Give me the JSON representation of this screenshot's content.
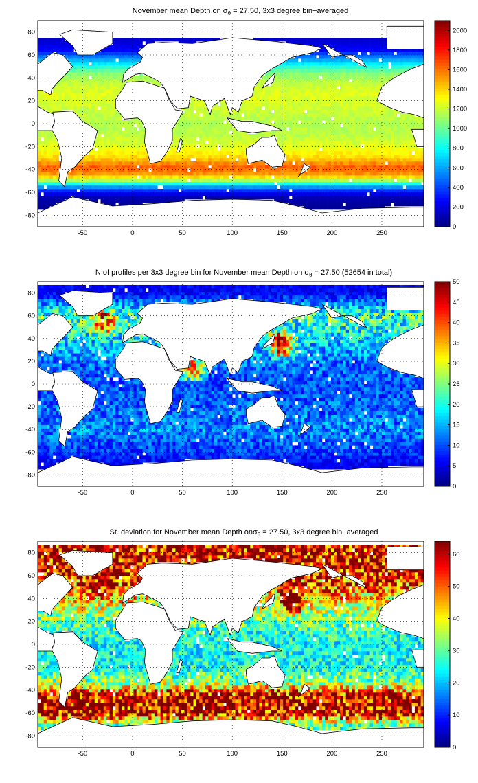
{
  "figure": {
    "x_ticks": [
      -50,
      0,
      50,
      100,
      150,
      200,
      250
    ],
    "y_ticks": [
      80,
      60,
      40,
      20,
      0,
      -20,
      -40,
      -60,
      -80
    ]
  },
  "chart_data": [
    {
      "type": "heatmap",
      "title": "November mean Depth on σθ = 27.50, 3x3 degree bin−averaged",
      "title_parts": {
        "pre": "November mean Depth on ",
        "sym": "σ",
        "sub": "θ",
        "post": " = 27.50, 3x3 degree bin−averaged"
      },
      "xlabel": "",
      "ylabel": "",
      "xlim": [
        -95,
        292
      ],
      "ylim": [
        -90,
        90
      ],
      "x_ticks": [
        -50,
        0,
        50,
        100,
        150,
        200,
        250
      ],
      "y_ticks": [
        80,
        60,
        40,
        20,
        0,
        -20,
        -40,
        -60,
        -80
      ],
      "colorbar": {
        "min": 0,
        "max": 2100,
        "ticks": [
          0,
          200,
          400,
          600,
          800,
          1000,
          1200,
          1400,
          1600,
          1800,
          2000
        ]
      },
      "colormap": "jet",
      "grid": true,
      "bin_size_deg": 3,
      "latitude_profile": [
        {
          "lat": 88,
          "value": null
        },
        {
          "lat": 75,
          "value": 150
        },
        {
          "lat": 65,
          "value": 250
        },
        {
          "lat": 55,
          "value": 650
        },
        {
          "lat": 45,
          "value": 1050
        },
        {
          "lat": 35,
          "value": 1200
        },
        {
          "lat": 25,
          "value": 1250
        },
        {
          "lat": 10,
          "value": 1200
        },
        {
          "lat": 0,
          "value": 1150
        },
        {
          "lat": -10,
          "value": 1180
        },
        {
          "lat": -20,
          "value": 1250
        },
        {
          "lat": -30,
          "value": 1400
        },
        {
          "lat": -38,
          "value": 1650
        },
        {
          "lat": -45,
          "value": 1500
        },
        {
          "lat": -50,
          "value": 1100
        },
        {
          "lat": -55,
          "value": 600
        },
        {
          "lat": -60,
          "value": 250
        },
        {
          "lat": -65,
          "value": 100
        },
        {
          "lat": -72,
          "value": 50
        }
      ],
      "noise": 0.04
    },
    {
      "type": "heatmap",
      "title": "N of profiles per 3x3 degree bin for November mean Depth on σθ = 27.50 (52654 in total)",
      "title_parts": {
        "pre": "N of profiles per 3x3 degree bin for November mean Depth on ",
        "sym": "σ",
        "sub": "θ",
        "post": " = 27.50 (52654 in total)"
      },
      "xlabel": "",
      "ylabel": "",
      "xlim": [
        -95,
        292
      ],
      "ylim": [
        -90,
        90
      ],
      "x_ticks": [
        -50,
        0,
        50,
        100,
        150,
        200,
        250
      ],
      "y_ticks": [
        80,
        60,
        40,
        20,
        0,
        -20,
        -40,
        -60,
        -80
      ],
      "colorbar": {
        "min": 0,
        "max": 50,
        "ticks": [
          0,
          5,
          10,
          15,
          20,
          25,
          30,
          35,
          40,
          45,
          50
        ]
      },
      "colormap": "jet",
      "grid": true,
      "total_profiles": 52654,
      "bin_size_deg": 3,
      "latitude_profile": [
        {
          "lat": 80,
          "value": 6
        },
        {
          "lat": 60,
          "value": 22
        },
        {
          "lat": 40,
          "value": 18
        },
        {
          "lat": 20,
          "value": 12
        },
        {
          "lat": 0,
          "value": 10
        },
        {
          "lat": -20,
          "value": 11
        },
        {
          "lat": -40,
          "value": 13
        },
        {
          "lat": -60,
          "value": 9
        },
        {
          "lat": -72,
          "value": 5
        }
      ],
      "hotspots": [
        {
          "lon": -30,
          "lat": 55,
          "value": 45
        },
        {
          "lon": 150,
          "lat": 35,
          "value": 48
        },
        {
          "lon": 60,
          "lat": 15,
          "value": 40
        }
      ],
      "noise": 0.45
    },
    {
      "type": "heatmap",
      "title": "St. deviation for November mean Depth onσθ = 27.50, 3x3 degree bin−averaged",
      "title_parts": {
        "pre": "St. deviation for November mean Depth on",
        "sym": "σ",
        "sub": "θ",
        "post": " = 27.50, 3x3 degree bin−averaged"
      },
      "xlabel": "",
      "ylabel": "",
      "xlim": [
        -95,
        292
      ],
      "ylim": [
        -90,
        90
      ],
      "x_ticks": [
        -50,
        0,
        50,
        100,
        150,
        200,
        250
      ],
      "y_ticks": [
        80,
        60,
        40,
        20,
        0,
        -20,
        -40,
        -60,
        -80
      ],
      "colorbar": {
        "min": 0,
        "max": 64,
        "ticks": [
          0,
          10,
          20,
          30,
          40,
          50,
          60
        ]
      },
      "colormap": "jet",
      "grid": true,
      "bin_size_deg": 3,
      "latitude_profile": [
        {
          "lat": 65,
          "value": 58
        },
        {
          "lat": 50,
          "value": 50
        },
        {
          "lat": 40,
          "value": 42
        },
        {
          "lat": 20,
          "value": 30
        },
        {
          "lat": 0,
          "value": 24
        },
        {
          "lat": -20,
          "value": 25
        },
        {
          "lat": -35,
          "value": 35
        },
        {
          "lat": -45,
          "value": 60
        },
        {
          "lat": -55,
          "value": 62
        },
        {
          "lat": -62,
          "value": 55
        },
        {
          "lat": -70,
          "value": 30
        }
      ],
      "hotspots": [
        {
          "lon": -30,
          "lat": 55,
          "value": 64
        },
        {
          "lon": 160,
          "lat": 38,
          "value": 64
        }
      ],
      "noise": 0.35
    }
  ]
}
